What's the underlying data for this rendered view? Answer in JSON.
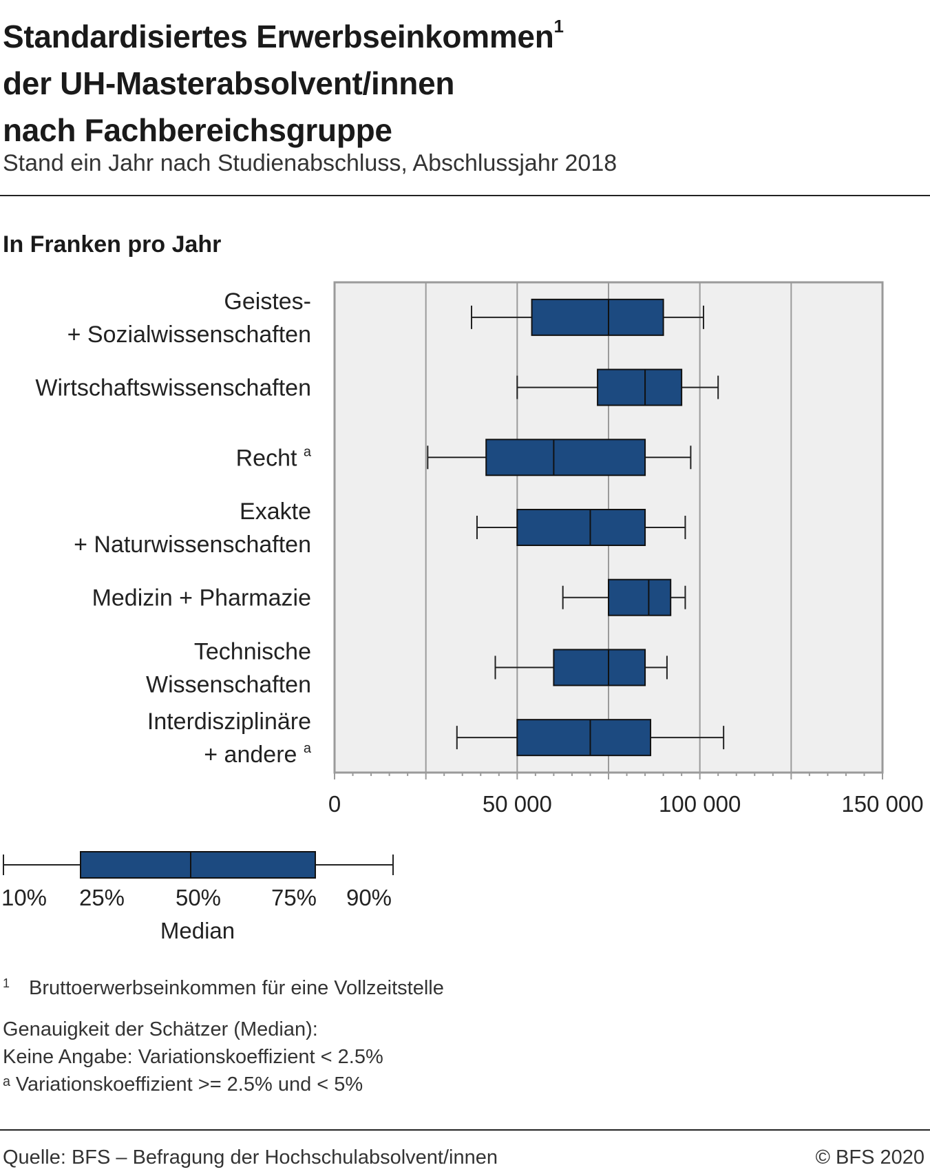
{
  "title": {
    "line1": "Standardisiertes Erwerbseinkommen",
    "line1_sup": "1",
    "line2": "der UH-Masterabsolvent/innen",
    "line3": "nach Fachbereichsgruppe"
  },
  "subtitle": "Stand ein Jahr nach Studienabschluss, Abschlussjahr 2018",
  "unit_label": "In Franken pro Jahr",
  "chart_data": {
    "type": "boxplot",
    "xlim": [
      0,
      150000
    ],
    "xticks": [
      0,
      50000,
      100000,
      150000
    ],
    "xtick_labels": [
      "0",
      "50 000",
      "100 000",
      "150 000"
    ],
    "grid": true,
    "box_color": "#1c4a80",
    "background_color": "#efefef",
    "categories": [
      {
        "lines": [
          "Geistes-",
          "+ Sozialwissenschaften"
        ],
        "sup": "",
        "p10": 37500,
        "p25": 54000,
        "median": 75000,
        "p75": 90000,
        "p90": 101000
      },
      {
        "lines": [
          "Wirtschaftswissenschaften"
        ],
        "sup": "",
        "p10": 50000,
        "p25": 72000,
        "median": 85000,
        "p75": 95000,
        "p90": 105000
      },
      {
        "lines": [
          "Recht"
        ],
        "sup": "a",
        "p10": 25500,
        "p25": 41500,
        "median": 60000,
        "p75": 85000,
        "p90": 97500
      },
      {
        "lines": [
          "Exakte",
          "+ Naturwissenschaften"
        ],
        "sup": "",
        "p10": 39000,
        "p25": 50000,
        "median": 70000,
        "p75": 85000,
        "p90": 96000
      },
      {
        "lines": [
          "Medizin + Pharmazie"
        ],
        "sup": "",
        "p10": 62500,
        "p25": 75000,
        "median": 86000,
        "p75": 92000,
        "p90": 96000
      },
      {
        "lines": [
          "Technische",
          "Wissenschaften"
        ],
        "sup": "",
        "p10": 44000,
        "p25": 60000,
        "median": 75000,
        "p75": 85000,
        "p90": 91000
      },
      {
        "lines": [
          "Interdisziplinäre",
          "+ andere"
        ],
        "sup": "a",
        "p10": 33500,
        "p25": 50000,
        "median": 70000,
        "p75": 86500,
        "p90": 106500
      }
    ]
  },
  "legend": {
    "labels": [
      "10%",
      "25%",
      "50%",
      "75%",
      "90%"
    ],
    "median_label": "Median"
  },
  "footnotes": {
    "fn1_num": "1",
    "fn1_text": "Bruttoerwerbseinkommen für eine Vollzeitstelle",
    "precision_title": "Genauigkeit der Schätzer (Median):",
    "precision_none": "Keine Angabe: Variationskoeffizient < 2.5%",
    "precision_a": "ᵃ Variationskoeffizient >= 2.5% und < 5%"
  },
  "source": "Quelle: BFS – Befragung der Hochschulabsolvent/innen",
  "copyright": "© BFS 2020"
}
